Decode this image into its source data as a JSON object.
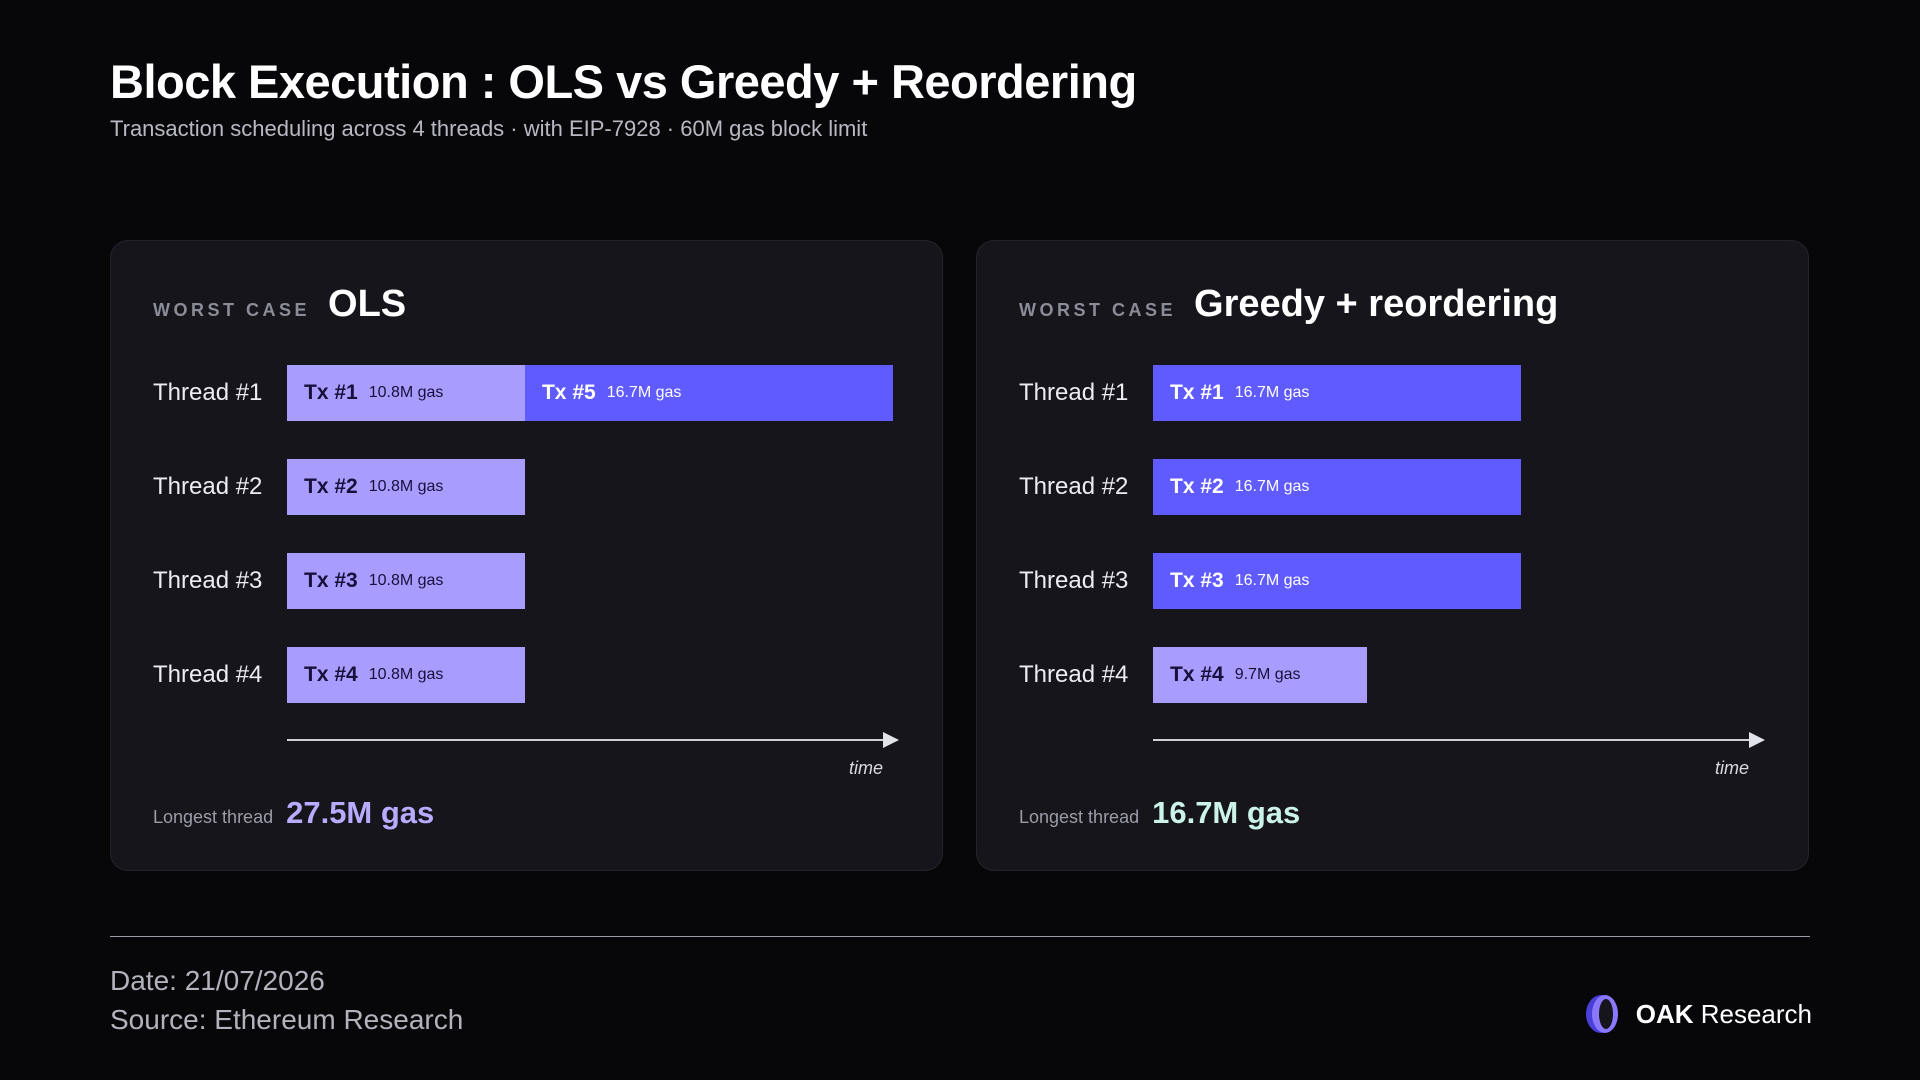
{
  "header": {
    "title": "Block Execution : OLS vs Greedy + Reordering",
    "subtitle": "Transaction scheduling across 4 threads · with EIP-7928 · 60M gas block limit"
  },
  "chart_data": [
    {
      "type": "bar",
      "kicker": "WORST CASE",
      "title": "OLS",
      "xlabel": "time",
      "xlim": [
        0,
        27.5
      ],
      "unit": "M gas",
      "threads": [
        {
          "label": "Thread #1",
          "txs": [
            {
              "name": "Tx #1",
              "gas": 10.8,
              "gas_label": "10.8M gas",
              "shade": "light"
            },
            {
              "name": "Tx #5",
              "gas": 16.7,
              "gas_label": "16.7M gas",
              "shade": "dark"
            }
          ]
        },
        {
          "label": "Thread #2",
          "txs": [
            {
              "name": "Tx #2",
              "gas": 10.8,
              "gas_label": "10.8M gas",
              "shade": "light"
            }
          ]
        },
        {
          "label": "Thread #3",
          "txs": [
            {
              "name": "Tx #3",
              "gas": 10.8,
              "gas_label": "10.8M gas",
              "shade": "light"
            }
          ]
        },
        {
          "label": "Thread #4",
          "txs": [
            {
              "name": "Tx #4",
              "gas": 10.8,
              "gas_label": "10.8M gas",
              "shade": "light"
            }
          ]
        }
      ],
      "summary_label": "Longest thread",
      "summary_value": "27.5M gas"
    },
    {
      "type": "bar",
      "kicker": "WORST CASE",
      "title": "Greedy + reordering",
      "xlabel": "time",
      "xlim": [
        0,
        27.5
      ],
      "unit": "M gas",
      "threads": [
        {
          "label": "Thread #1",
          "txs": [
            {
              "name": "Tx #1",
              "gas": 16.7,
              "gas_label": "16.7M gas",
              "shade": "dark"
            }
          ]
        },
        {
          "label": "Thread #2",
          "txs": [
            {
              "name": "Tx #2",
              "gas": 16.7,
              "gas_label": "16.7M gas",
              "shade": "dark"
            }
          ]
        },
        {
          "label": "Thread #3",
          "txs": [
            {
              "name": "Tx #3",
              "gas": 16.7,
              "gas_label": "16.7M gas",
              "shade": "dark"
            }
          ]
        },
        {
          "label": "Thread #4",
          "txs": [
            {
              "name": "Tx #4",
              "gas": 9.7,
              "gas_label": "9.7M gas",
              "shade": "light"
            }
          ]
        }
      ],
      "summary_label": "Longest thread",
      "summary_value": "16.7M gas"
    }
  ],
  "colors": {
    "light_bar": "#a99cff",
    "dark_bar": "#5f5bff",
    "ols_value": "#b9abff",
    "greedy_value": "#cbf3ea"
  },
  "footer": {
    "date": "Date: 21/07/2026",
    "source": "Source: Ethereum Research",
    "brand_bold": "OAK",
    "brand_rest": " Research",
    "brand_icon": "oak-logo-icon"
  }
}
